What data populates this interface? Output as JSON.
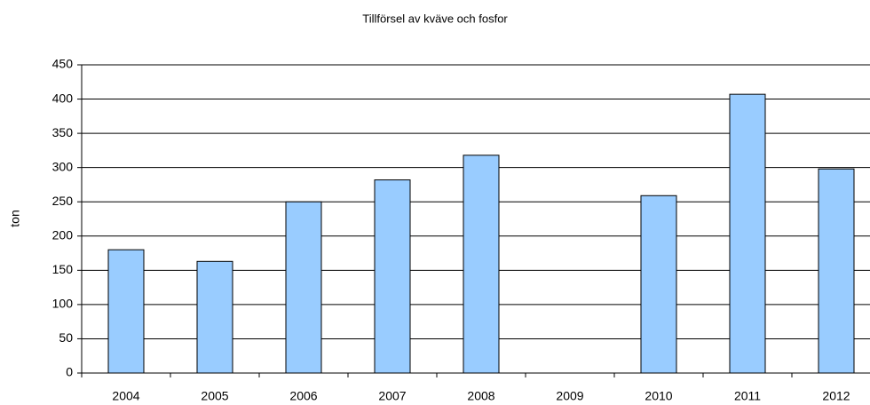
{
  "chart_data": {
    "type": "bar",
    "title": "Tillförsel av kväve och fosfor",
    "y_label": "ton",
    "categories": [
      "2004",
      "2005",
      "2006",
      "2007",
      "2008",
      "2009",
      "2010",
      "2011",
      "2012"
    ],
    "values": [
      180,
      163,
      250,
      282,
      318,
      null,
      259,
      407,
      298
    ],
    "color": "#99ccff",
    "ylim": [
      0,
      450
    ],
    "yticks": [
      0,
      50,
      100,
      150,
      200,
      250,
      300,
      350,
      400,
      450
    ],
    "grid": true
  }
}
